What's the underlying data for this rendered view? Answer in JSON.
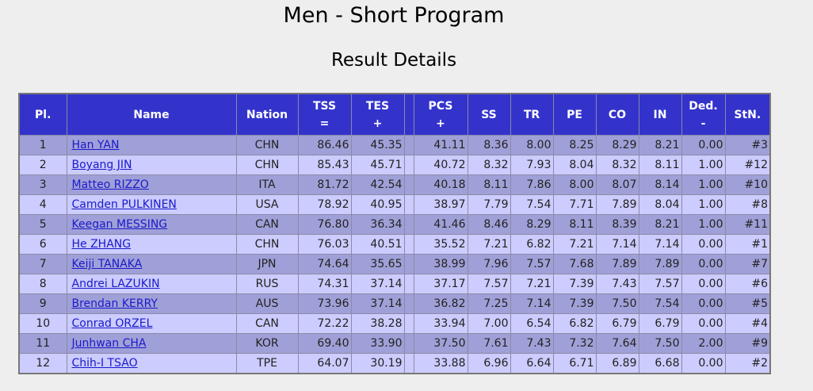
{
  "header": {
    "title": "Men - Short Program",
    "subtitle": "Result Details"
  },
  "table": {
    "columns": [
      {
        "label": "Pl."
      },
      {
        "label": "Name"
      },
      {
        "label": "Nation"
      },
      {
        "label": "TSS",
        "sub": "="
      },
      {
        "label": "TES",
        "sub": "+"
      },
      {
        "label": "PCS",
        "sub": "+"
      },
      {
        "label": "SS"
      },
      {
        "label": "TR"
      },
      {
        "label": "PE"
      },
      {
        "label": "CO"
      },
      {
        "label": "IN"
      },
      {
        "label": "Ded.",
        "sub": "-"
      },
      {
        "label": "StN."
      }
    ],
    "rows": [
      [
        "1",
        "Han YAN",
        "CHN",
        "86.46",
        "45.35",
        "41.11",
        "8.36",
        "8.00",
        "8.25",
        "8.29",
        "8.21",
        "0.00",
        "#3"
      ],
      [
        "2",
        "Boyang JIN",
        "CHN",
        "85.43",
        "45.71",
        "40.72",
        "8.32",
        "7.93",
        "8.04",
        "8.32",
        "8.11",
        "1.00",
        "#12"
      ],
      [
        "3",
        "Matteo RIZZO",
        "ITA",
        "81.72",
        "42.54",
        "40.18",
        "8.11",
        "7.86",
        "8.00",
        "8.07",
        "8.14",
        "1.00",
        "#10"
      ],
      [
        "4",
        "Camden PULKINEN",
        "USA",
        "78.92",
        "40.95",
        "38.97",
        "7.79",
        "7.54",
        "7.71",
        "7.89",
        "8.04",
        "1.00",
        "#8"
      ],
      [
        "5",
        "Keegan MESSING",
        "CAN",
        "76.80",
        "36.34",
        "41.46",
        "8.46",
        "8.29",
        "8.11",
        "8.39",
        "8.21",
        "1.00",
        "#11"
      ],
      [
        "6",
        "He ZHANG",
        "CHN",
        "76.03",
        "40.51",
        "35.52",
        "7.21",
        "6.82",
        "7.21",
        "7.14",
        "7.14",
        "0.00",
        "#1"
      ],
      [
        "7",
        "Keiji TANAKA",
        "JPN",
        "74.64",
        "35.65",
        "38.99",
        "7.96",
        "7.57",
        "7.68",
        "7.89",
        "7.89",
        "0.00",
        "#7"
      ],
      [
        "8",
        "Andrei LAZUKIN",
        "RUS",
        "74.31",
        "37.14",
        "37.17",
        "7.57",
        "7.21",
        "7.39",
        "7.43",
        "7.57",
        "0.00",
        "#6"
      ],
      [
        "9",
        "Brendan KERRY",
        "AUS",
        "73.96",
        "37.14",
        "36.82",
        "7.25",
        "7.14",
        "7.39",
        "7.50",
        "7.54",
        "0.00",
        "#5"
      ],
      [
        "10",
        "Conrad ORZEL",
        "CAN",
        "72.22",
        "38.28",
        "33.94",
        "7.00",
        "6.54",
        "6.82",
        "6.79",
        "6.79",
        "0.00",
        "#4"
      ],
      [
        "11",
        "Junhwan CHA",
        "KOR",
        "69.40",
        "33.90",
        "37.50",
        "7.61",
        "7.43",
        "7.32",
        "7.64",
        "7.50",
        "2.00",
        "#9"
      ],
      [
        "12",
        "Chih-I TSAO",
        "TPE",
        "64.07",
        "30.19",
        "33.88",
        "6.96",
        "6.64",
        "6.71",
        "6.89",
        "6.68",
        "0.00",
        "#2"
      ]
    ]
  }
}
